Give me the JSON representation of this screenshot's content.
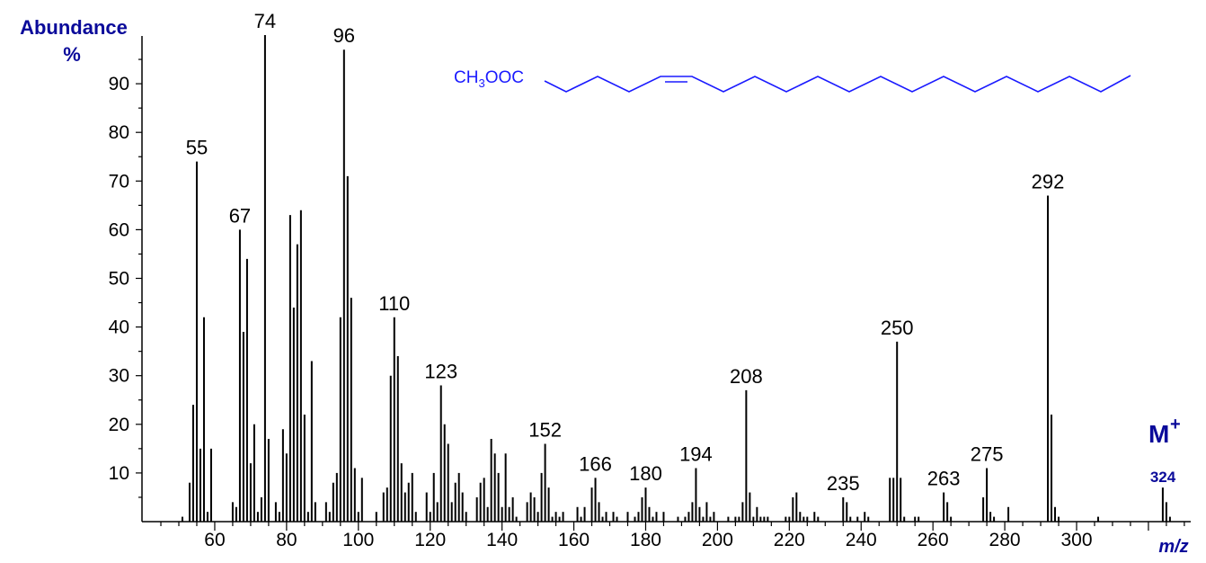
{
  "chart_data": {
    "type": "bar",
    "ylabel": "Abundance %",
    "ylabel_lines": [
      "Abundance",
      "%"
    ],
    "xlabel": "m/z",
    "xlim": [
      40,
      332
    ],
    "ylim": [
      0,
      100
    ],
    "x_ticks": [
      60,
      80,
      100,
      120,
      140,
      160,
      180,
      200,
      220,
      240,
      260,
      280,
      300
    ],
    "y_ticks": [
      10,
      20,
      30,
      40,
      50,
      60,
      70,
      80,
      90
    ],
    "grid": false,
    "structure": {
      "group": "CH3OOC",
      "group_parts": [
        "CH",
        "3",
        "OOC"
      ]
    },
    "molecular_ion_label": "M",
    "molecular_ion_sup": "+",
    "molecular_ion_mz": "324",
    "annotated_peaks": [
      55,
      67,
      74,
      96,
      110,
      123,
      152,
      166,
      180,
      194,
      208,
      235,
      250,
      263,
      275,
      292
    ],
    "peaks": [
      [
        51,
        1
      ],
      [
        53,
        8
      ],
      [
        54,
        24
      ],
      [
        55,
        74
      ],
      [
        56,
        15
      ],
      [
        57,
        42
      ],
      [
        58,
        2
      ],
      [
        59,
        15
      ],
      [
        65,
        4
      ],
      [
        66,
        3
      ],
      [
        67,
        60
      ],
      [
        68,
        39
      ],
      [
        69,
        54
      ],
      [
        70,
        12
      ],
      [
        71,
        20
      ],
      [
        72,
        2
      ],
      [
        73,
        5
      ],
      [
        74,
        100
      ],
      [
        75,
        17
      ],
      [
        77,
        4
      ],
      [
        78,
        2
      ],
      [
        79,
        19
      ],
      [
        80,
        14
      ],
      [
        81,
        63
      ],
      [
        82,
        44
      ],
      [
        83,
        57
      ],
      [
        84,
        64
      ],
      [
        85,
        22
      ],
      [
        86,
        2
      ],
      [
        87,
        33
      ],
      [
        88,
        4
      ],
      [
        91,
        4
      ],
      [
        92,
        2
      ],
      [
        93,
        8
      ],
      [
        94,
        10
      ],
      [
        95,
        42
      ],
      [
        96,
        97
      ],
      [
        97,
        71
      ],
      [
        98,
        46
      ],
      [
        99,
        11
      ],
      [
        100,
        2
      ],
      [
        101,
        9
      ],
      [
        105,
        2
      ],
      [
        107,
        6
      ],
      [
        108,
        7
      ],
      [
        109,
        30
      ],
      [
        110,
        42
      ],
      [
        111,
        34
      ],
      [
        112,
        12
      ],
      [
        113,
        6
      ],
      [
        114,
        8
      ],
      [
        115,
        10
      ],
      [
        116,
        2
      ],
      [
        119,
        6
      ],
      [
        120,
        2
      ],
      [
        121,
        10
      ],
      [
        122,
        4
      ],
      [
        123,
        28
      ],
      [
        124,
        20
      ],
      [
        125,
        16
      ],
      [
        126,
        4
      ],
      [
        127,
        8
      ],
      [
        128,
        10
      ],
      [
        129,
        6
      ],
      [
        130,
        2
      ],
      [
        133,
        5
      ],
      [
        134,
        8
      ],
      [
        135,
        9
      ],
      [
        136,
        3
      ],
      [
        137,
        17
      ],
      [
        138,
        14
      ],
      [
        139,
        10
      ],
      [
        140,
        3
      ],
      [
        141,
        14
      ],
      [
        142,
        3
      ],
      [
        143,
        5
      ],
      [
        144,
        1
      ],
      [
        147,
        4
      ],
      [
        148,
        6
      ],
      [
        149,
        5
      ],
      [
        150,
        2
      ],
      [
        151,
        10
      ],
      [
        152,
        16
      ],
      [
        153,
        7
      ],
      [
        154,
        1
      ],
      [
        155,
        2
      ],
      [
        156,
        1
      ],
      [
        157,
        2
      ],
      [
        161,
        3
      ],
      [
        162,
        1
      ],
      [
        163,
        3
      ],
      [
        165,
        7
      ],
      [
        166,
        9
      ],
      [
        167,
        4
      ],
      [
        168,
        1
      ],
      [
        169,
        2
      ],
      [
        171,
        2
      ],
      [
        172,
        1
      ],
      [
        175,
        2
      ],
      [
        177,
        1
      ],
      [
        178,
        2
      ],
      [
        179,
        5
      ],
      [
        180,
        7
      ],
      [
        181,
        3
      ],
      [
        182,
        1
      ],
      [
        183,
        2
      ],
      [
        185,
        2
      ],
      [
        189,
        1
      ],
      [
        191,
        1
      ],
      [
        192,
        2
      ],
      [
        193,
        4
      ],
      [
        194,
        11
      ],
      [
        195,
        3
      ],
      [
        196,
        1
      ],
      [
        197,
        4
      ],
      [
        198,
        1
      ],
      [
        199,
        2
      ],
      [
        203,
        1
      ],
      [
        205,
        1
      ],
      [
        206,
        1
      ],
      [
        207,
        4
      ],
      [
        208,
        27
      ],
      [
        209,
        6
      ],
      [
        210,
        1
      ],
      [
        211,
        3
      ],
      [
        212,
        1
      ],
      [
        213,
        1
      ],
      [
        214,
        1
      ],
      [
        219,
        1
      ],
      [
        220,
        1
      ],
      [
        221,
        5
      ],
      [
        222,
        6
      ],
      [
        223,
        2
      ],
      [
        224,
        1
      ],
      [
        225,
        1
      ],
      [
        227,
        2
      ],
      [
        228,
        1
      ],
      [
        235,
        5
      ],
      [
        236,
        4
      ],
      [
        237,
        1
      ],
      [
        239,
        1
      ],
      [
        241,
        2
      ],
      [
        242,
        1
      ],
      [
        248,
        9
      ],
      [
        249,
        9
      ],
      [
        250,
        37
      ],
      [
        251,
        9
      ],
      [
        252,
        1
      ],
      [
        255,
        1
      ],
      [
        256,
        1
      ],
      [
        263,
        6
      ],
      [
        264,
        4
      ],
      [
        265,
        1
      ],
      [
        274,
        5
      ],
      [
        275,
        11
      ],
      [
        276,
        2
      ],
      [
        277,
        1
      ],
      [
        281,
        3
      ],
      [
        292,
        67
      ],
      [
        293,
        22
      ],
      [
        294,
        3
      ],
      [
        295,
        1
      ],
      [
        306,
        1
      ],
      [
        324,
        7
      ],
      [
        325,
        4
      ],
      [
        326,
        1
      ]
    ],
    "colors": {
      "bars": "#000000",
      "labels_accent": "#0a0a9a",
      "structure": "#1a1aff"
    }
  }
}
